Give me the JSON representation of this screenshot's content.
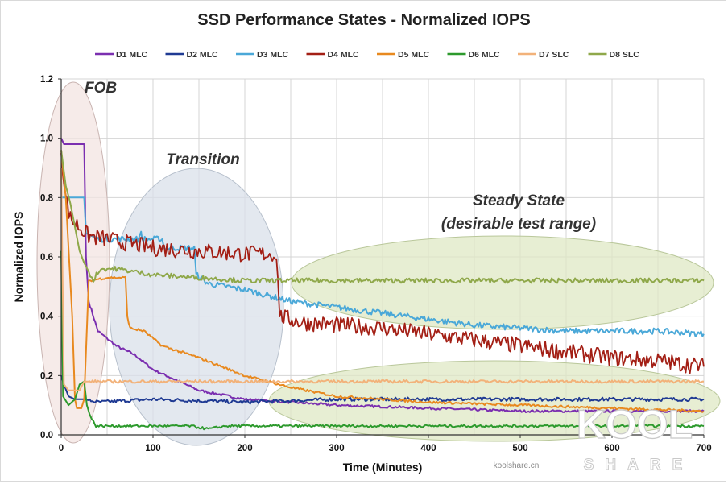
{
  "chart_data": {
    "type": "line",
    "title": "SSD Performance States - Normalized IOPS",
    "xlabel": "Time (Minutes)",
    "ylabel": "Normalized IOPS",
    "xlim": [
      0,
      700
    ],
    "ylim": [
      0,
      1.2
    ],
    "x_ticks": [
      "0",
      "100",
      "200",
      "300",
      "400",
      "500",
      "600",
      "700"
    ],
    "y_ticks": [
      "0.0",
      "0.2",
      "0.4",
      "0.6",
      "0.8",
      "1.0",
      "1.2"
    ],
    "grid": true,
    "legend_position": "top",
    "series": [
      {
        "name": "D1 MLC",
        "color": "#7b2fb0",
        "points": [
          [
            0,
            1.0
          ],
          [
            3,
            0.98
          ],
          [
            20,
            0.98
          ],
          [
            25,
            0.98
          ],
          [
            27,
            0.6
          ],
          [
            30,
            0.45
          ],
          [
            40,
            0.35
          ],
          [
            60,
            0.3
          ],
          [
            80,
            0.27
          ],
          [
            100,
            0.22
          ],
          [
            150,
            0.15
          ],
          [
            200,
            0.12
          ],
          [
            300,
            0.1
          ],
          [
            400,
            0.09
          ],
          [
            500,
            0.08
          ],
          [
            600,
            0.08
          ],
          [
            700,
            0.08
          ]
        ]
      },
      {
        "name": "D2 MLC",
        "color": "#1f3a93",
        "points": [
          [
            0,
            0.2
          ],
          [
            3,
            0.17
          ],
          [
            8,
            0.13
          ],
          [
            15,
            0.12
          ],
          [
            25,
            0.12
          ],
          [
            40,
            0.11
          ],
          [
            100,
            0.12
          ],
          [
            200,
            0.11
          ],
          [
            300,
            0.12
          ],
          [
            400,
            0.12
          ],
          [
            500,
            0.12
          ],
          [
            600,
            0.12
          ],
          [
            700,
            0.12
          ]
        ]
      },
      {
        "name": "D3 MLC",
        "color": "#4aa8d8",
        "points": [
          [
            0,
            0.8
          ],
          [
            20,
            0.8
          ],
          [
            25,
            0.8
          ],
          [
            27,
            0.68
          ],
          [
            40,
            0.66
          ],
          [
            85,
            0.66
          ],
          [
            87,
            0.69
          ],
          [
            88,
            0.66
          ],
          [
            110,
            0.66
          ],
          [
            112,
            0.63
          ],
          [
            145,
            0.63
          ],
          [
            147,
            0.54
          ],
          [
            160,
            0.51
          ],
          [
            200,
            0.49
          ],
          [
            250,
            0.45
          ],
          [
            300,
            0.43
          ],
          [
            350,
            0.41
          ],
          [
            400,
            0.39
          ],
          [
            450,
            0.37
          ],
          [
            500,
            0.36
          ],
          [
            550,
            0.35
          ],
          [
            600,
            0.35
          ],
          [
            650,
            0.35
          ],
          [
            700,
            0.34
          ]
        ]
      },
      {
        "name": "D4 MLC",
        "color": "#a31f15",
        "points": [
          [
            0,
            0.96
          ],
          [
            5,
            0.8
          ],
          [
            10,
            0.73
          ],
          [
            20,
            0.7
          ],
          [
            30,
            0.67
          ],
          [
            50,
            0.66
          ],
          [
            100,
            0.63
          ],
          [
            150,
            0.62
          ],
          [
            200,
            0.61
          ],
          [
            233,
            0.61
          ],
          [
            236,
            0.55
          ],
          [
            238,
            0.4
          ],
          [
            260,
            0.38
          ],
          [
            300,
            0.37
          ],
          [
            350,
            0.36
          ],
          [
            400,
            0.34
          ],
          [
            450,
            0.32
          ],
          [
            500,
            0.3
          ],
          [
            550,
            0.28
          ],
          [
            600,
            0.26
          ],
          [
            650,
            0.25
          ],
          [
            700,
            0.23
          ]
        ]
      },
      {
        "name": "D5 MLC",
        "color": "#e8891f",
        "points": [
          [
            0,
            0.96
          ],
          [
            5,
            0.8
          ],
          [
            12,
            0.4
          ],
          [
            15,
            0.12
          ],
          [
            17,
            0.09
          ],
          [
            22,
            0.09
          ],
          [
            25,
            0.12
          ],
          [
            30,
            0.52
          ],
          [
            50,
            0.53
          ],
          [
            70,
            0.53
          ],
          [
            72,
            0.4
          ],
          [
            75,
            0.36
          ],
          [
            90,
            0.35
          ],
          [
            110,
            0.3
          ],
          [
            150,
            0.26
          ],
          [
            200,
            0.2
          ],
          [
            250,
            0.16
          ],
          [
            300,
            0.13
          ],
          [
            400,
            0.11
          ],
          [
            500,
            0.1
          ],
          [
            600,
            0.09
          ],
          [
            700,
            0.08
          ]
        ]
      },
      {
        "name": "D6 MLC",
        "color": "#2d9a2d",
        "points": [
          [
            0,
            0.62
          ],
          [
            2,
            0.13
          ],
          [
            8,
            0.1
          ],
          [
            15,
            0.12
          ],
          [
            20,
            0.17
          ],
          [
            25,
            0.18
          ],
          [
            28,
            0.1
          ],
          [
            32,
            0.06
          ],
          [
            38,
            0.03
          ],
          [
            60,
            0.03
          ],
          [
            140,
            0.03
          ],
          [
            160,
            0.02
          ],
          [
            180,
            0.03
          ],
          [
            300,
            0.03
          ],
          [
            400,
            0.03
          ],
          [
            500,
            0.03
          ],
          [
            600,
            0.03
          ],
          [
            700,
            0.03
          ]
        ]
      },
      {
        "name": "D7 SLC",
        "color": "#f2b27a",
        "points": [
          [
            0,
            0.9
          ],
          [
            3,
            0.17
          ],
          [
            8,
            0.15
          ],
          [
            15,
            0.15
          ],
          [
            20,
            0.15
          ],
          [
            25,
            0.18
          ],
          [
            40,
            0.18
          ],
          [
            100,
            0.18
          ],
          [
            200,
            0.18
          ],
          [
            300,
            0.18
          ],
          [
            400,
            0.18
          ],
          [
            500,
            0.18
          ],
          [
            600,
            0.18
          ],
          [
            700,
            0.18
          ]
        ]
      },
      {
        "name": "D8 SLC",
        "color": "#8fa84a",
        "points": [
          [
            0,
            0.96
          ],
          [
            5,
            0.84
          ],
          [
            10,
            0.78
          ],
          [
            15,
            0.7
          ],
          [
            20,
            0.62
          ],
          [
            25,
            0.58
          ],
          [
            30,
            0.55
          ],
          [
            35,
            0.52
          ],
          [
            40,
            0.55
          ],
          [
            45,
            0.56
          ],
          [
            50,
            0.56
          ],
          [
            60,
            0.56
          ],
          [
            80,
            0.55
          ],
          [
            100,
            0.54
          ],
          [
            150,
            0.53
          ],
          [
            200,
            0.52
          ],
          [
            300,
            0.52
          ],
          [
            400,
            0.52
          ],
          [
            500,
            0.52
          ],
          [
            600,
            0.52
          ],
          [
            700,
            0.52
          ]
        ]
      }
    ],
    "annotations": [
      {
        "text": "FOB"
      },
      {
        "text": "Transition"
      },
      {
        "text": "Steady State"
      },
      {
        "text": "(desirable test range)"
      }
    ]
  },
  "watermark": {
    "site": "koolshare.cn",
    "logo_top": "KOOL",
    "logo_bottom": "SHARE"
  }
}
